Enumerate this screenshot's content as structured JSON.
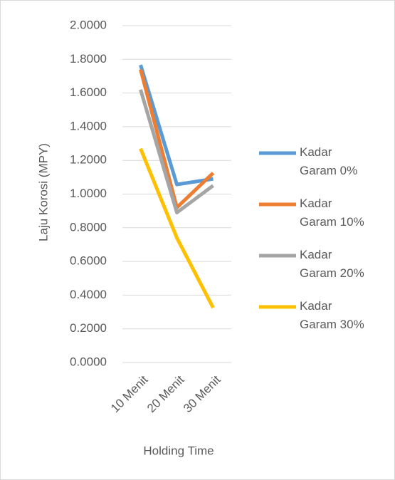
{
  "chart_data": {
    "type": "line",
    "x_label": "Holding Time",
    "y_label": "Laju Korosi (MPY)",
    "categories": [
      "10 Menit",
      "20 Menit",
      "30 Menit"
    ],
    "series": [
      {
        "name": "Kadar Garam 0%",
        "color": "#5b9bd5",
        "values": [
          1.767,
          1.057,
          1.09
        ]
      },
      {
        "name": "Kadar Garam 10%",
        "color": "#ed7d31",
        "values": [
          1.74,
          0.92,
          1.125
        ]
      },
      {
        "name": "Kadar Garam 20%",
        "color": "#a5a5a5",
        "values": [
          1.62,
          0.89,
          1.05
        ]
      },
      {
        "name": "Kadar Garam 30%",
        "color": "#ffc000",
        "values": [
          1.27,
          0.74,
          0.325
        ]
      }
    ],
    "ylim": [
      0,
      2
    ],
    "yticks": [
      {
        "value": 0,
        "label": "0.0000"
      },
      {
        "value": 0.2,
        "label": "0.2000"
      },
      {
        "value": 0.4,
        "label": "0.4000"
      },
      {
        "value": 0.6,
        "label": "0.6000"
      },
      {
        "value": 0.8,
        "label": "0.8000"
      },
      {
        "value": 1,
        "label": "1.0000"
      },
      {
        "value": 1.2,
        "label": "1.2000"
      },
      {
        "value": 1.4,
        "label": "1.4000"
      },
      {
        "value": 1.6,
        "label": "1.6000"
      },
      {
        "value": 1.8,
        "label": "1.8000"
      },
      {
        "value": 2,
        "label": "2.0000"
      }
    ],
    "grid": true,
    "legend": "right"
  }
}
